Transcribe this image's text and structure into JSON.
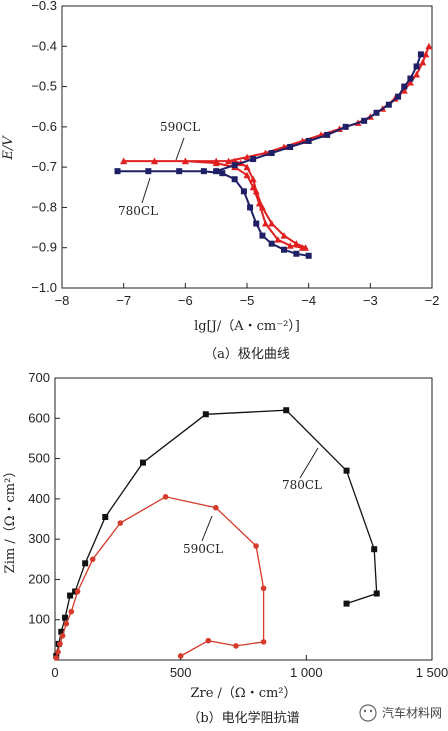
{
  "colors": {
    "red": "#e02020",
    "navy": "#1f1f66",
    "black": "#111111",
    "eis_red": "#d63a2a"
  },
  "chart_data": [
    {
      "type": "line",
      "caption": "（a）极化曲线",
      "xlabel": "lg[J/（A・cm⁻²）]",
      "ylabel": "E/V",
      "xlim": [
        -8,
        -2
      ],
      "ylim": [
        -1.0,
        -0.3
      ],
      "xticks": [
        -8,
        -7,
        -6,
        -5,
        -4,
        -3,
        -2
      ],
      "yticks": [
        -0.3,
        -0.4,
        -0.5,
        -0.6,
        -0.7,
        -0.8,
        -0.9,
        -1.0
      ],
      "grid": false,
      "series": [
        {
          "name": "590CL",
          "marker": "triangle",
          "color": "#e02020",
          "x": [
            -7.0,
            -6.5,
            -6.0,
            -5.5,
            -5.2,
            -5.0,
            -4.9,
            -4.8,
            -4.7,
            -4.5,
            -4.3,
            -4.1,
            -4.05,
            -4.2,
            -4.4,
            -4.6,
            -4.75,
            -4.85,
            -4.9,
            -5.0,
            -5.1,
            -5.2,
            -5.5,
            -6.0,
            -6.5,
            -7.0
          ],
          "y": [
            -0.685,
            -0.685,
            -0.685,
            -0.69,
            -0.7,
            -0.72,
            -0.75,
            -0.79,
            -0.84,
            -0.88,
            -0.895,
            -0.9,
            -0.9,
            -0.89,
            -0.87,
            -0.84,
            -0.8,
            -0.76,
            -0.73,
            -0.7,
            -0.69,
            -0.685,
            -0.685,
            -0.685,
            -0.685,
            -0.685
          ],
          "anodic_x": [
            -5.3,
            -5.0,
            -4.7,
            -4.4,
            -4.1,
            -3.8,
            -3.5,
            -3.2,
            -3.0,
            -2.8,
            -2.6,
            -2.45,
            -2.35,
            -2.25,
            -2.15,
            -2.1,
            -2.05
          ],
          "anodic_y": [
            -0.685,
            -0.675,
            -0.665,
            -0.65,
            -0.635,
            -0.62,
            -0.605,
            -0.59,
            -0.575,
            -0.555,
            -0.53,
            -0.51,
            -0.49,
            -0.47,
            -0.44,
            -0.42,
            -0.4
          ]
        },
        {
          "name": "780CL",
          "marker": "square",
          "color": "#1f1f66",
          "x": [
            -7.1,
            -6.6,
            -6.1,
            -5.7,
            -5.4,
            -5.2,
            -5.05,
            -4.95,
            -4.85,
            -4.75,
            -4.6,
            -4.4,
            -4.2,
            -4.0
          ],
          "y": [
            -0.71,
            -0.71,
            -0.71,
            -0.71,
            -0.715,
            -0.73,
            -0.76,
            -0.8,
            -0.84,
            -0.87,
            -0.89,
            -0.905,
            -0.915,
            -0.92
          ],
          "anodic_x": [
            -5.5,
            -5.2,
            -4.9,
            -4.6,
            -4.3,
            -4.0,
            -3.7,
            -3.4,
            -3.1,
            -2.9,
            -2.7,
            -2.55,
            -2.45,
            -2.35,
            -2.25,
            -2.18
          ],
          "anodic_y": [
            -0.71,
            -0.695,
            -0.68,
            -0.665,
            -0.65,
            -0.635,
            -0.62,
            -0.6,
            -0.585,
            -0.565,
            -0.545,
            -0.525,
            -0.5,
            -0.48,
            -0.45,
            -0.42
          ]
        }
      ]
    },
    {
      "type": "line",
      "caption": "（b）电化学阻抗谱",
      "xlabel": "Zre /（Ω・cm²）",
      "ylabel": "Zim /（Ω・cm²）",
      "xlim": [
        0,
        1500
      ],
      "ylim": [
        0,
        700
      ],
      "xticks": [
        0,
        500,
        1000,
        1500
      ],
      "xtick_labels": [
        "0",
        "500",
        "1 000",
        "1 500"
      ],
      "yticks": [
        100,
        200,
        300,
        400,
        500,
        600,
        700
      ],
      "grid": false,
      "series": [
        {
          "name": "780CL",
          "marker": "square",
          "color": "#111111",
          "x": [
            5,
            15,
            25,
            40,
            60,
            80,
            120,
            200,
            350,
            600,
            920,
            1160,
            1270,
            1280,
            1160
          ],
          "y": [
            10,
            40,
            70,
            105,
            160,
            170,
            240,
            355,
            490,
            610,
            620,
            470,
            275,
            165,
            140
          ]
        },
        {
          "name": "590CL",
          "marker": "circle",
          "color": "#d63a2a",
          "x": [
            5,
            12,
            20,
            30,
            45,
            65,
            90,
            150,
            260,
            440,
            640,
            800,
            830,
            830,
            720,
            610,
            500
          ],
          "y": [
            5,
            20,
            40,
            60,
            90,
            120,
            170,
            250,
            340,
            405,
            378,
            283,
            178,
            45,
            35,
            48,
            10
          ]
        }
      ]
    }
  ],
  "watermark": "汽车材料网"
}
